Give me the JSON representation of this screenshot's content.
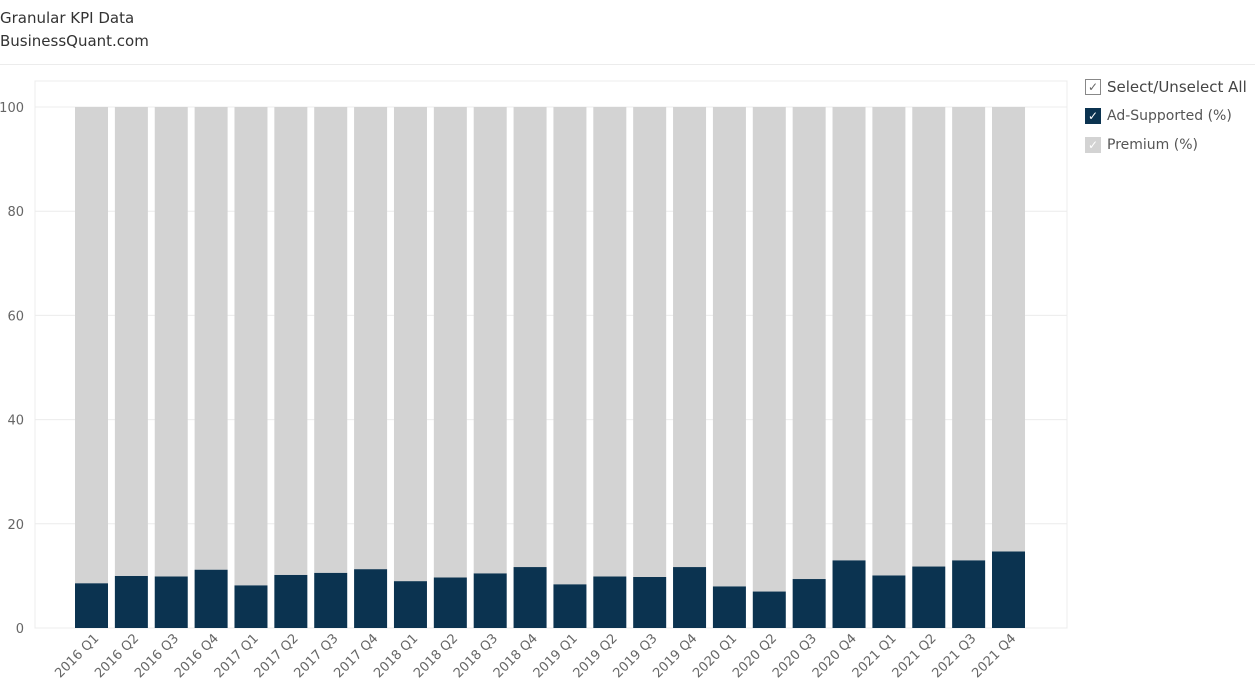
{
  "header": {
    "title": "Granular KPI Data",
    "subtitle": "BusinessQuant.com"
  },
  "legend": {
    "select_all_label": "Select/Unselect All",
    "items": [
      {
        "label": "Ad-Supported (%)",
        "color": "#0b3350",
        "checked": true
      },
      {
        "label": "Premium (%)",
        "color": "#d3d3d3",
        "checked": true
      }
    ],
    "check_glyph": "✓"
  },
  "chart_data": {
    "type": "bar",
    "stacked": true,
    "categories": [
      "2016 Q1",
      "2016 Q2",
      "2016 Q3",
      "2016 Q4",
      "2017 Q1",
      "2017 Q2",
      "2017 Q3",
      "2017 Q4",
      "2018 Q1",
      "2018 Q2",
      "2018 Q3",
      "2018 Q4",
      "2019 Q1",
      "2019 Q2",
      "2019 Q3",
      "2019 Q4",
      "2020 Q1",
      "2020 Q2",
      "2020 Q3",
      "2020 Q4",
      "2021 Q1",
      "2021 Q2",
      "2021 Q3",
      "2021 Q4"
    ],
    "series": [
      {
        "name": "Ad-Supported (%)",
        "color": "#0b3350",
        "values": [
          8.6,
          10.0,
          9.9,
          11.2,
          8.2,
          10.2,
          10.6,
          11.3,
          9.0,
          9.7,
          10.5,
          11.7,
          8.4,
          9.9,
          9.8,
          11.7,
          8.0,
          7.0,
          9.4,
          13.0,
          10.1,
          11.8,
          13.0,
          14.7
        ]
      },
      {
        "name": "Premium (%)",
        "color": "#d3d3d3",
        "values": [
          91.4,
          90.0,
          90.1,
          88.8,
          91.8,
          89.8,
          89.4,
          88.7,
          91.0,
          90.3,
          89.5,
          88.3,
          91.6,
          90.1,
          90.2,
          88.3,
          92.0,
          93.0,
          90.6,
          87.0,
          89.9,
          88.2,
          87.0,
          85.3
        ]
      }
    ],
    "yticks": [
      0,
      20,
      40,
      60,
      80,
      100
    ],
    "ylim": [
      0,
      100
    ],
    "grid": true,
    "legend_position": "right"
  }
}
